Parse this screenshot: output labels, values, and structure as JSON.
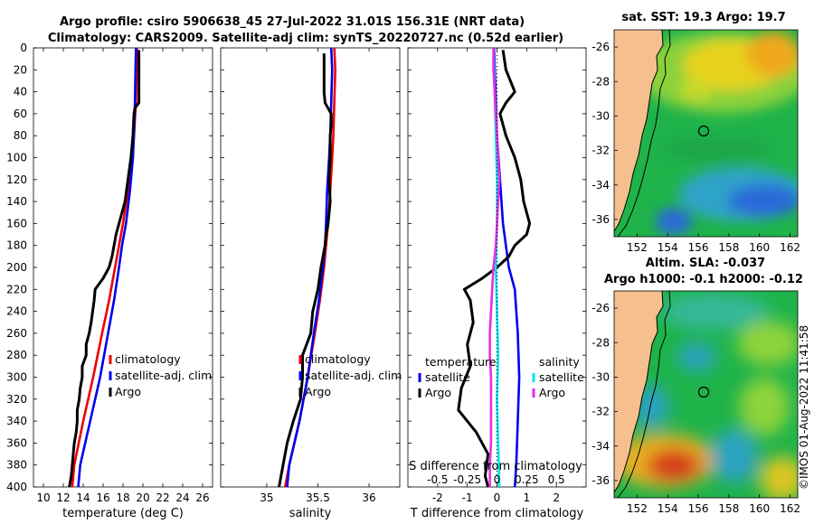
{
  "figure": {
    "title_line1": "Argo profile: csiro 5906638_45 27-Jul-2022 31.01S 156.31E (NRT data)",
    "title_line2": "Climatology: CARS2009. Satellite-adj clim: synTS_20220727.nc (0.52d earlier)",
    "watermark": "©IMOS 01-Aug-2022 11:41:58"
  },
  "colors": {
    "argo": "#000000",
    "climatology": "#ee0000",
    "satellite": "#0000ee",
    "temp_diff_sat": "#0000ee",
    "temp_diff_argo": "#000000",
    "sal_diff_sat": "#00e5ee",
    "sal_diff_argo": "#e62ee6",
    "land": "#f5c08e"
  },
  "chart_data": [
    {
      "id": "temperature_panel",
      "type": "line",
      "xlabel": "temperature (deg C)",
      "ylabel": "",
      "xlim": [
        9,
        27
      ],
      "ylim": [
        400,
        0
      ],
      "xticks": [
        10,
        12,
        14,
        16,
        18,
        20,
        22,
        24,
        26
      ],
      "yticks": [
        0,
        20,
        40,
        60,
        80,
        100,
        120,
        140,
        160,
        180,
        200,
        220,
        240,
        260,
        280,
        300,
        320,
        340,
        360,
        380,
        400
      ],
      "legend": [
        "climatology",
        "satellite-adj. clim",
        "Argo"
      ],
      "series": [
        {
          "name": "climatology",
          "color": "#ee0000",
          "depth": [
            0,
            20,
            50,
            80,
            100,
            130,
            160,
            180,
            200,
            230,
            260,
            300,
            340,
            380,
            400
          ],
          "values": [
            19.4,
            19.35,
            19.3,
            19.1,
            18.9,
            18.5,
            18.0,
            17.6,
            17.2,
            16.6,
            15.9,
            15.0,
            14.0,
            13.1,
            12.9
          ]
        },
        {
          "name": "satellite-adj. clim",
          "color": "#0000ee",
          "depth": [
            0,
            20,
            50,
            80,
            100,
            130,
            160,
            180,
            200,
            230,
            260,
            300,
            340,
            380,
            400
          ],
          "values": [
            19.3,
            19.25,
            19.2,
            19.1,
            19.0,
            18.7,
            18.3,
            17.9,
            17.6,
            17.1,
            16.5,
            15.7,
            14.7,
            13.7,
            13.5
          ]
        },
        {
          "name": "Argo",
          "color": "#000000",
          "depth": [
            2,
            10,
            20,
            30,
            40,
            50,
            55,
            60,
            80,
            100,
            120,
            140,
            160,
            170,
            180,
            190,
            200,
            210,
            220,
            230,
            250,
            260,
            270,
            280,
            290,
            300,
            310,
            320,
            330,
            340,
            350,
            360,
            370,
            380,
            390,
            400
          ],
          "values": [
            19.6,
            19.6,
            19.6,
            19.6,
            19.6,
            19.6,
            19.2,
            19.1,
            19.0,
            18.8,
            18.5,
            18.2,
            17.6,
            17.3,
            17.1,
            16.9,
            16.6,
            16.0,
            15.2,
            15.1,
            14.8,
            14.6,
            14.3,
            14.3,
            13.9,
            13.9,
            13.7,
            13.6,
            13.4,
            13.4,
            13.3,
            13.1,
            13.0,
            12.9,
            12.8,
            12.6
          ]
        }
      ]
    },
    {
      "id": "salinity_panel",
      "type": "line",
      "xlabel": "salinity",
      "xlim": [
        34.55,
        36.3
      ],
      "ylim": [
        400,
        0
      ],
      "xticks": [
        35,
        35.5,
        36
      ],
      "legend": [
        "climatology",
        "satellite-adj. clim",
        "Argo"
      ],
      "series": [
        {
          "name": "climatology",
          "color": "#ee0000",
          "depth": [
            0,
            20,
            50,
            80,
            100,
            130,
            160,
            180,
            200,
            230,
            260,
            300,
            340,
            380,
            400
          ],
          "values": [
            35.66,
            35.67,
            35.66,
            35.65,
            35.64,
            35.62,
            35.6,
            35.58,
            35.56,
            35.52,
            35.47,
            35.4,
            35.32,
            35.22,
            35.18
          ]
        },
        {
          "name": "satellite-adj. clim",
          "color": "#0000ee",
          "depth": [
            0,
            20,
            50,
            80,
            100,
            130,
            160,
            180,
            200,
            230,
            260,
            300,
            340,
            380,
            400
          ],
          "values": [
            35.63,
            35.64,
            35.63,
            35.62,
            35.61,
            35.59,
            35.58,
            35.57,
            35.55,
            35.51,
            35.46,
            35.4,
            35.32,
            35.22,
            35.2
          ]
        },
        {
          "name": "Argo",
          "color": "#000000",
          "depth": [
            5,
            20,
            40,
            50,
            60,
            70,
            80,
            100,
            120,
            140,
            160,
            170,
            180,
            200,
            220,
            240,
            260,
            280,
            300,
            320,
            340,
            360,
            380,
            400
          ],
          "values": [
            35.56,
            35.56,
            35.56,
            35.57,
            35.63,
            35.63,
            35.62,
            35.62,
            35.61,
            35.62,
            35.6,
            35.58,
            35.57,
            35.53,
            35.5,
            35.45,
            35.43,
            35.35,
            35.35,
            35.33,
            35.26,
            35.2,
            35.16,
            35.12
          ]
        }
      ]
    },
    {
      "id": "difference_panel",
      "type": "line",
      "xlabel": "T difference from climatology",
      "xlabel_top": "S difference from climatology",
      "xlim": [
        -3,
        3
      ],
      "ylim": [
        400,
        0
      ],
      "xticks": [
        -2,
        -1,
        0,
        1,
        2
      ],
      "xticks_top": [
        -0.5,
        -0.25,
        0,
        0.25,
        0.5
      ],
      "xlim_top": [
        -0.75,
        0.75
      ],
      "legend_left_title": "temperature",
      "legend_left": [
        "satellite",
        "Argo"
      ],
      "legend_right_title": "salinity",
      "legend_right": [
        "satellite",
        "Argo"
      ],
      "series": [
        {
          "name": "temperature satellite",
          "color": "#0000ee",
          "axis": "T",
          "depth": [
            0,
            40,
            80,
            120,
            160,
            200,
            220,
            260,
            300,
            340,
            380,
            400
          ],
          "values": [
            -0.1,
            -0.05,
            0,
            0.1,
            0.2,
            0.4,
            0.6,
            0.7,
            0.75,
            0.7,
            0.65,
            0.6
          ]
        },
        {
          "name": "temperature Argo",
          "color": "#000000",
          "axis": "T",
          "depth": [
            2,
            20,
            40,
            50,
            60,
            80,
            100,
            120,
            140,
            160,
            170,
            180,
            190,
            200,
            210,
            220,
            230,
            250,
            270,
            290,
            310,
            330,
            350,
            370,
            390,
            400
          ],
          "values": [
            0.2,
            0.3,
            0.6,
            0.3,
            0.1,
            0.3,
            0.6,
            0.8,
            0.9,
            1.1,
            1.0,
            0.6,
            0.4,
            0.0,
            -0.5,
            -1.1,
            -0.9,
            -0.8,
            -1.0,
            -0.9,
            -1.2,
            -1.3,
            -0.7,
            -0.3,
            -0.4,
            -0.3
          ]
        },
        {
          "name": "salinity satellite",
          "color": "#00e5ee",
          "axis": "S",
          "depth": [
            0,
            40,
            80,
            120,
            160,
            200,
            240,
            280,
            320,
            360,
            400
          ],
          "values": [
            -0.03,
            -0.02,
            -0.01,
            0.0,
            0.0,
            -0.01,
            0.0,
            0.01,
            0.0,
            0.01,
            0.02
          ]
        },
        {
          "name": "salinity Argo",
          "color": "#e62ee6",
          "axis": "S",
          "depth": [
            0,
            20,
            40,
            60,
            80,
            100,
            120,
            140,
            160,
            180,
            200,
            220,
            240,
            260,
            280,
            300,
            320,
            340,
            360,
            380,
            400
          ],
          "values": [
            -0.03,
            -0.03,
            -0.02,
            -0.01,
            0.0,
            0.01,
            0.02,
            0.01,
            0.0,
            -0.01,
            -0.03,
            -0.04,
            -0.05,
            -0.06,
            -0.06,
            -0.05,
            -0.05,
            -0.05,
            -0.05,
            -0.06,
            -0.06
          ]
        }
      ]
    },
    {
      "id": "sst_map",
      "type": "heatmap",
      "title": "sat. SST: 19.3 Argo: 19.7",
      "xlim": [
        150.5,
        162.5
      ],
      "ylim": [
        -37,
        -25
      ],
      "xticks": [
        152,
        154,
        156,
        158,
        160,
        162
      ],
      "yticks": [
        -26,
        -28,
        -30,
        -32,
        -34,
        -36
      ],
      "profile_location": {
        "lon": 156.31,
        "lat": -31.01
      }
    },
    {
      "id": "sla_map",
      "type": "heatmap",
      "title_line1": "Altim. SLA: -0.037",
      "title_line2": "Argo h1000: -0.1 h2000: -0.12",
      "xlim": [
        150.5,
        162.5
      ],
      "ylim": [
        -37,
        -25
      ],
      "xticks": [
        152,
        154,
        156,
        158,
        160,
        162
      ],
      "yticks": [
        -26,
        -28,
        -30,
        -32,
        -34,
        -36
      ],
      "profile_location": {
        "lon": 156.31,
        "lat": -31.01
      }
    }
  ]
}
